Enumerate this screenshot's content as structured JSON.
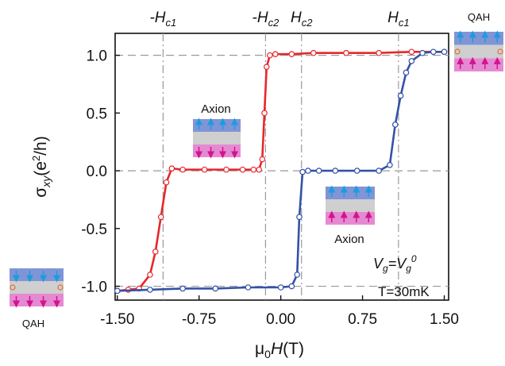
{
  "chart_data": {
    "type": "line",
    "xlabel": {
      "main": "μ",
      "sub": "0",
      "rest": "H",
      "unit": "(T)"
    },
    "ylabel": {
      "main": "σ",
      "sub": "xy",
      "rest": "(e",
      "sup": "2",
      "end": "/h)"
    },
    "xlim": [
      -1.52,
      1.54
    ],
    "ylim": [
      -1.12,
      1.19
    ],
    "xticks": [
      {
        "value": -1.5,
        "label": "-1.50"
      },
      {
        "value": -0.75,
        "label": "-0.75"
      },
      {
        "value": 0,
        "label": "0.00"
      },
      {
        "value": 0.75,
        "label": "0.75"
      },
      {
        "value": 1.5,
        "label": "1.50"
      }
    ],
    "yticks": [
      {
        "value": 1,
        "label": "1.0"
      },
      0.5,
      {
        "value": 0,
        "label": "0.0"
      },
      -0.5,
      {
        "value": -1,
        "label": "-1.0"
      }
    ],
    "hlines": [
      1,
      0,
      -1
    ],
    "vlines": [
      {
        "x": -1.08,
        "text": "-H",
        "sub": "c1"
      },
      {
        "x": -0.14,
        "text": "-H",
        "sub": "c2"
      },
      {
        "x": 0.19,
        "text": "H",
        "sub": "c2"
      },
      {
        "x": 1.08,
        "text": "H",
        "sub": "c1"
      }
    ],
    "series": [
      {
        "color": "#e8262b",
        "x": [
          1.5,
          1.2,
          0.9,
          0.6,
          0.3,
          0.1,
          -0.05,
          -0.1,
          -0.13,
          -0.15,
          -0.17,
          -0.2,
          -0.25,
          -0.35,
          -0.5,
          -0.7,
          -0.9,
          -1.0,
          -1.05,
          -1.1,
          -1.15,
          -1.2,
          -1.3,
          -1.4,
          -1.5
        ],
        "values": [
          1.03,
          1.03,
          1.02,
          1.02,
          1.02,
          1.01,
          1.01,
          1.0,
          0.9,
          0.5,
          0.1,
          0.01,
          0.01,
          0.01,
          0.01,
          0.01,
          0.01,
          0.02,
          -0.1,
          -0.4,
          -0.7,
          -0.9,
          -1.02,
          -1.03,
          -1.04
        ]
      },
      {
        "color": "#3352a8",
        "x": [
          -1.5,
          -1.2,
          -0.9,
          -0.6,
          -0.3,
          0,
          0.1,
          0.15,
          0.17,
          0.2,
          0.25,
          0.35,
          0.5,
          0.7,
          0.9,
          1.0,
          1.05,
          1.1,
          1.15,
          1.2,
          1.3,
          1.4,
          1.5
        ],
        "values": [
          -1.04,
          -1.03,
          -1.02,
          -1.02,
          -1.01,
          -1.01,
          -1.0,
          -0.9,
          -0.4,
          -0.01,
          0,
          0,
          0,
          0,
          0,
          0.05,
          0.4,
          0.65,
          0.85,
          0.95,
          1.02,
          1.03,
          1.03
        ]
      }
    ],
    "annotations": {
      "axion_upper": "Axion",
      "axion_lower": "Axion",
      "qah_top": "QAH",
      "qah_bottom": "QAH",
      "gate": [
        "V",
        "g",
        "=V",
        "g",
        "0"
      ],
      "temperature": "T=30mK"
    }
  }
}
